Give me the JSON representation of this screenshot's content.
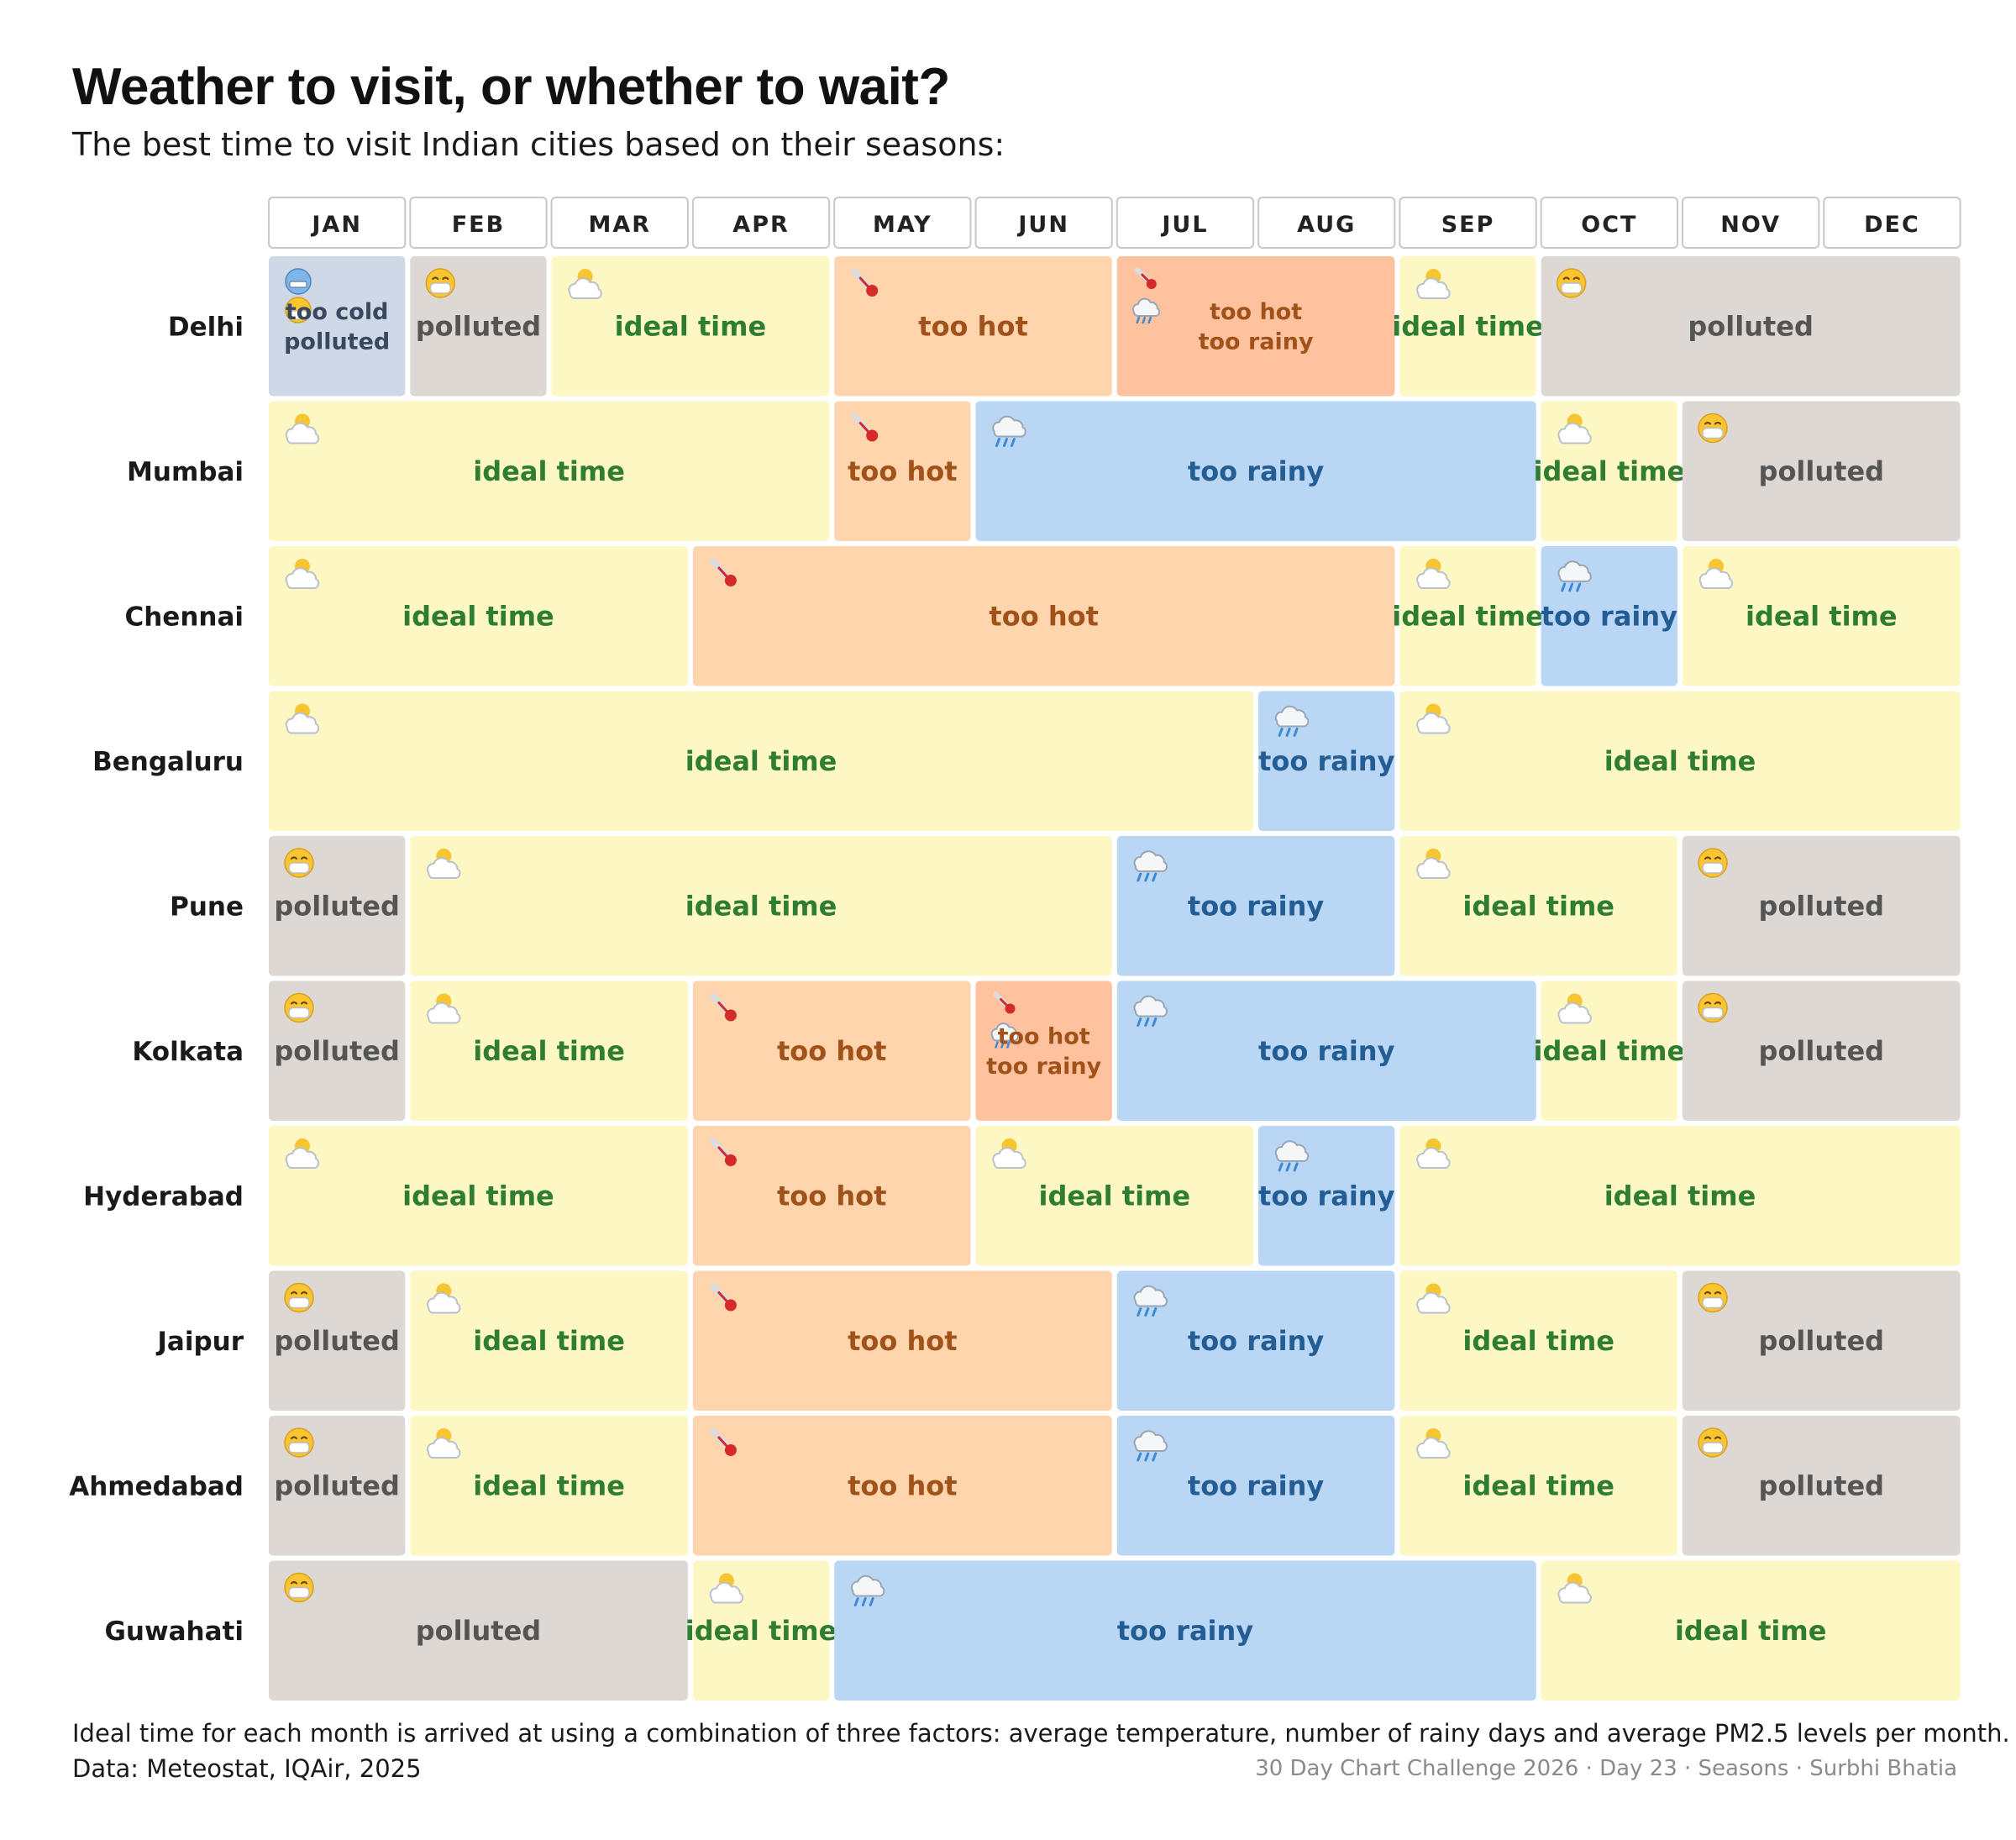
{
  "title": "Weather to visit, or whether to wait?",
  "subtitle": "The best time to visit Indian cities based on their seasons:",
  "footnote": "Ideal time for each month is arrived at using a combination of three factors: average temperature, number of rainy days and average PM2.5 levels per month.",
  "source": "Data: Meteostat, IQAir, 2025",
  "credit": "30 Day Chart Challenge 2026 · Day 23 · Seasons · Surbhi Bhatia",
  "categories": {
    "ideal": {
      "label": "ideal time",
      "fill": "#fdf7c4",
      "text": "#2e7d32",
      "icon": "sun-behind-cloud-icon"
    },
    "hot": {
      "label": "too hot",
      "fill": "#fed5ad",
      "text": "#a0521a",
      "icon": "thermometer-icon"
    },
    "rainy": {
      "label": "too rainy",
      "fill": "#b9d7f5",
      "text": "#245c94",
      "icon": "rain-cloud-icon"
    },
    "polluted": {
      "label": "polluted",
      "fill": "#ddd8d3",
      "text": "#555555",
      "icon": "face-with-mask-icon"
    },
    "hot_rainy": {
      "label": "too hot\ntoo rainy",
      "fill": "#fec29e",
      "text": "#a0521a",
      "icon": "thermometer-rain-icon"
    },
    "cold_polluted": {
      "label": "too cold\npolluted",
      "fill": "#cfd8e6",
      "text": "#38485e",
      "icon": "cold-face-mask-icon"
    }
  },
  "chart_data": {
    "type": "heatmap",
    "x": [
      "JAN",
      "FEB",
      "MAR",
      "APR",
      "MAY",
      "JUN",
      "JUL",
      "AUG",
      "SEP",
      "OCT",
      "NOV",
      "DEC"
    ],
    "y": [
      "Delhi",
      "Mumbai",
      "Chennai",
      "Bengaluru",
      "Pune",
      "Kolkata",
      "Hyderabad",
      "Jaipur",
      "Ahmedabad",
      "Guwahati"
    ],
    "rows": [
      {
        "city": "Delhi",
        "segments": [
          {
            "start": 1,
            "end": 1,
            "category": "cold_polluted"
          },
          {
            "start": 2,
            "end": 2,
            "category": "polluted"
          },
          {
            "start": 3,
            "end": 4,
            "category": "ideal"
          },
          {
            "start": 5,
            "end": 6,
            "category": "hot"
          },
          {
            "start": 7,
            "end": 8,
            "category": "hot_rainy"
          },
          {
            "start": 9,
            "end": 9,
            "category": "ideal"
          },
          {
            "start": 10,
            "end": 12,
            "category": "polluted"
          }
        ]
      },
      {
        "city": "Mumbai",
        "segments": [
          {
            "start": 1,
            "end": 4,
            "category": "ideal"
          },
          {
            "start": 5,
            "end": 5,
            "category": "hot"
          },
          {
            "start": 6,
            "end": 9,
            "category": "rainy"
          },
          {
            "start": 10,
            "end": 10,
            "category": "ideal"
          },
          {
            "start": 11,
            "end": 12,
            "category": "polluted"
          }
        ]
      },
      {
        "city": "Chennai",
        "segments": [
          {
            "start": 1,
            "end": 3,
            "category": "ideal"
          },
          {
            "start": 4,
            "end": 8,
            "category": "hot"
          },
          {
            "start": 9,
            "end": 9,
            "category": "ideal"
          },
          {
            "start": 10,
            "end": 10,
            "category": "rainy"
          },
          {
            "start": 11,
            "end": 12,
            "category": "ideal"
          }
        ]
      },
      {
        "city": "Bengaluru",
        "segments": [
          {
            "start": 1,
            "end": 7,
            "category": "ideal"
          },
          {
            "start": 8,
            "end": 8,
            "category": "rainy"
          },
          {
            "start": 9,
            "end": 12,
            "category": "ideal"
          }
        ]
      },
      {
        "city": "Pune",
        "segments": [
          {
            "start": 1,
            "end": 1,
            "category": "polluted"
          },
          {
            "start": 2,
            "end": 6,
            "category": "ideal"
          },
          {
            "start": 7,
            "end": 8,
            "category": "rainy"
          },
          {
            "start": 9,
            "end": 10,
            "category": "ideal"
          },
          {
            "start": 11,
            "end": 12,
            "category": "polluted"
          }
        ]
      },
      {
        "city": "Kolkata",
        "segments": [
          {
            "start": 1,
            "end": 1,
            "category": "polluted"
          },
          {
            "start": 2,
            "end": 3,
            "category": "ideal"
          },
          {
            "start": 4,
            "end": 5,
            "category": "hot"
          },
          {
            "start": 6,
            "end": 6,
            "category": "hot_rainy"
          },
          {
            "start": 7,
            "end": 9,
            "category": "rainy"
          },
          {
            "start": 10,
            "end": 10,
            "category": "ideal"
          },
          {
            "start": 11,
            "end": 12,
            "category": "polluted"
          }
        ]
      },
      {
        "city": "Hyderabad",
        "segments": [
          {
            "start": 1,
            "end": 3,
            "category": "ideal"
          },
          {
            "start": 4,
            "end": 5,
            "category": "hot"
          },
          {
            "start": 6,
            "end": 7,
            "category": "ideal"
          },
          {
            "start": 8,
            "end": 8,
            "category": "rainy"
          },
          {
            "start": 9,
            "end": 12,
            "category": "ideal"
          }
        ]
      },
      {
        "city": "Jaipur",
        "segments": [
          {
            "start": 1,
            "end": 1,
            "category": "polluted"
          },
          {
            "start": 2,
            "end": 3,
            "category": "ideal"
          },
          {
            "start": 4,
            "end": 6,
            "category": "hot"
          },
          {
            "start": 7,
            "end": 8,
            "category": "rainy"
          },
          {
            "start": 9,
            "end": 10,
            "category": "ideal"
          },
          {
            "start": 11,
            "end": 12,
            "category": "polluted"
          }
        ]
      },
      {
        "city": "Ahmedabad",
        "segments": [
          {
            "start": 1,
            "end": 1,
            "category": "polluted"
          },
          {
            "start": 2,
            "end": 3,
            "category": "ideal"
          },
          {
            "start": 4,
            "end": 6,
            "category": "hot"
          },
          {
            "start": 7,
            "end": 8,
            "category": "rainy"
          },
          {
            "start": 9,
            "end": 10,
            "category": "ideal"
          },
          {
            "start": 11,
            "end": 12,
            "category": "polluted"
          }
        ]
      },
      {
        "city": "Guwahati",
        "segments": [
          {
            "start": 1,
            "end": 3,
            "category": "polluted"
          },
          {
            "start": 4,
            "end": 4,
            "category": "ideal"
          },
          {
            "start": 5,
            "end": 9,
            "category": "rainy"
          },
          {
            "start": 10,
            "end": 12,
            "category": "ideal"
          }
        ]
      }
    ]
  }
}
